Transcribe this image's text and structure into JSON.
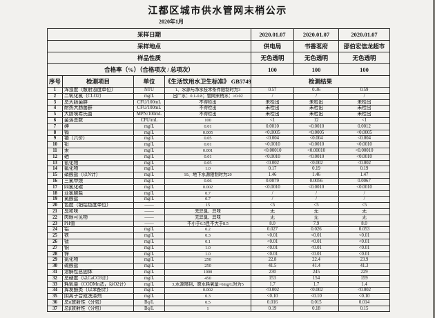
{
  "page": {
    "title": "江都区城市供水管网末梢公示",
    "subtitle": "2020年1月"
  },
  "info_rows": [
    {
      "label": "采样日期",
      "values": [
        "2020.01.07",
        "2020.01.07",
        "2020.01.07"
      ]
    },
    {
      "label": "采样地点",
      "values": [
        "供电局",
        "书香茗府",
        "邵伯宏信龙超市"
      ]
    },
    {
      "label": "样品性质",
      "values": [
        "无色透明",
        "无色透明",
        "无色透明"
      ]
    },
    {
      "label": "合格率（%）（合格项次 / 总项次）",
      "values": [
        "100",
        "100",
        "100"
      ]
    }
  ],
  "table": {
    "headers": {
      "no": "序号",
      "item": "检测项目",
      "unit": "单位",
      "standard": "《生活饮用水卫生标准》 GB5749",
      "results": "检测结果"
    },
    "rows": [
      {
        "no": "1",
        "item": "浑浊度（散射浊度单位）",
        "unit": "NTU",
        "standard": "1、水源与净水技术条件限制时为3",
        "r": [
          "0.57",
          "0.36",
          "0.59"
        ]
      },
      {
        "no": "2",
        "item": "二氧化氯（CLO2）",
        "unit": "mg/L",
        "standard": "出厂水：0.1-0.8；管网末梢水：≥0.02",
        "r": [
          "/",
          "/",
          "/"
        ]
      },
      {
        "no": "3",
        "item": "总大肠菌群",
        "unit": "CFU/100mL",
        "standard": "不得检出",
        "r": [
          "未检出",
          "未检出",
          "未检出"
        ]
      },
      {
        "no": "4",
        "item": "耐热大肠菌群",
        "unit": "CFU/100mL",
        "standard": "不得检出",
        "r": [
          "未检出",
          "未检出",
          "未检出"
        ]
      },
      {
        "no": "5",
        "item": "大肠埃希氏菌",
        "unit": "MPN/100mL",
        "standard": "不得检出",
        "r": [
          "未检出",
          "未检出",
          "未检出"
        ]
      },
      {
        "no": "6",
        "item": "菌落总数",
        "unit": "CFU/mL",
        "standard": "100",
        "r": [
          "<1",
          "12",
          "<1"
        ]
      },
      {
        "no": "7",
        "item": "砷",
        "unit": "mg/L",
        "standard": "0.01",
        "r": [
          "0.0010",
          "<0.0010",
          "0.0012"
        ]
      },
      {
        "no": "8",
        "item": "镉",
        "unit": "mg/L",
        "standard": "0.005",
        "r": [
          "<0.0005",
          "<0.0005",
          "<0.0005"
        ]
      },
      {
        "no": "9",
        "item": "铬（六价）",
        "unit": "mg/L",
        "standard": "0.05",
        "r": [
          "<0.004",
          "<0.004",
          "<0.004"
        ]
      },
      {
        "no": "10",
        "item": "铅",
        "unit": "mg/L",
        "standard": "0.01",
        "r": [
          "<0.0010",
          "<0.0010",
          "<0.0010"
        ]
      },
      {
        "no": "11",
        "item": "汞",
        "unit": "mg/L",
        "standard": "0.001",
        "r": [
          "<0.00010",
          "<0.00010",
          "<0.00010"
        ]
      },
      {
        "no": "12",
        "item": "硒",
        "unit": "mg/L",
        "standard": "0.01",
        "r": [
          "<0.0010",
          "<0.0010",
          "<0.0010"
        ]
      },
      {
        "no": "13",
        "item": "氰化物",
        "unit": "mg/L",
        "standard": "0.05",
        "r": [
          "<0.002",
          "<0.002",
          "<0.002"
        ]
      },
      {
        "no": "14",
        "item": "氟化物",
        "unit": "mg/L",
        "standard": "1.0",
        "r": [
          "0.17",
          "0.19",
          "0.19"
        ]
      },
      {
        "no": "15",
        "item": "硝酸盐（以N计）",
        "unit": "mg/L",
        "standard": "10、地下水源限制时为20",
        "r": [
          "1.46",
          "1.46",
          "1.47"
        ]
      },
      {
        "no": "16",
        "item": "三氯甲烷",
        "unit": "mg/L",
        "standard": "0.06",
        "r": [
          "0.0079",
          "0.0056",
          "0.0067"
        ]
      },
      {
        "no": "17",
        "item": "四氯化碳",
        "unit": "mg/L",
        "standard": "0.002",
        "r": [
          "<0.0010",
          "<0.0010",
          "<0.0010"
        ]
      },
      {
        "no": "18",
        "item": "亚氯酸盐",
        "unit": "mg/L",
        "standard": "0.7",
        "r": [
          "/",
          "/",
          "/"
        ]
      },
      {
        "no": "19",
        "item": "氯酸盐",
        "unit": "mg/L",
        "standard": "0.7",
        "r": [
          "/",
          "/",
          "/"
        ]
      },
      {
        "no": "20",
        "item": "色度（铂钴色度单位）",
        "unit": "——",
        "standard": "15",
        "r": [
          "<5",
          "<5",
          "<5"
        ]
      },
      {
        "no": "21",
        "item": "臭和味",
        "unit": "——",
        "standard": "无异臭、异味",
        "r": [
          "无",
          "无",
          "无"
        ]
      },
      {
        "no": "22",
        "item": "肉眼可见物",
        "unit": "——",
        "standard": "无异臭、异味",
        "r": [
          "无",
          "无",
          "无"
        ]
      },
      {
        "no": "23",
        "item": "PH值",
        "unit": "——",
        "standard": "不小于6.5且不大于8.5",
        "r": [
          "8.0",
          "7.9",
          "8.0"
        ]
      },
      {
        "no": "24",
        "item": "铝",
        "unit": "mg/L",
        "standard": "0.2",
        "r": [
          "0.027",
          "0.026",
          "0.053"
        ]
      },
      {
        "no": "25",
        "item": "铁",
        "unit": "mg/L",
        "standard": "0.3",
        "r": [
          "<0.01",
          "<0.01",
          "<0.01"
        ]
      },
      {
        "no": "26",
        "item": "锰",
        "unit": "mg/L",
        "standard": "0.1",
        "r": [
          "<0.01",
          "<0.01",
          "<0.01"
        ]
      },
      {
        "no": "27",
        "item": "铜",
        "unit": "mg/L",
        "standard": "1.0",
        "r": [
          "<0.01",
          "<0.01",
          "<0.01"
        ]
      },
      {
        "no": "28",
        "item": "锌",
        "unit": "mg/L",
        "standard": "1.0",
        "r": [
          "<0.01",
          "<0.01",
          "<0.01"
        ]
      },
      {
        "no": "29",
        "item": "氯化物",
        "unit": "mg/L",
        "standard": "250",
        "r": [
          "22.8",
          "22.4",
          "23.9"
        ]
      },
      {
        "no": "30",
        "item": "硫酸盐",
        "unit": "mg/L",
        "standard": "250",
        "r": [
          "41.5",
          "41.4",
          "41.3"
        ]
      },
      {
        "no": "31",
        "item": "溶解性总固体",
        "unit": "mg/L",
        "standard": "1000",
        "r": [
          "230",
          "245",
          "229"
        ]
      },
      {
        "no": "32",
        "item": "总硬度（以CaCO3计）",
        "unit": "mg/L",
        "standard": "450",
        "r": [
          "153",
          "154",
          "159"
        ]
      },
      {
        "no": "33",
        "item": "耗氧量（CODMn法，以O2计）",
        "unit": "mg/L",
        "standard": "3,水源限制，原水耗氧量>6mg/L时为5",
        "r": [
          "1.7",
          "1.7",
          "1.4"
        ]
      },
      {
        "no": "34",
        "item": "挥发酚类（以苯酚计）",
        "unit": "mg/L",
        "standard": "0.002",
        "r": [
          "<0.002",
          "<0.002",
          "<0.002"
        ]
      },
      {
        "no": "35",
        "item": "阴离子合成洗涤剂",
        "unit": "mg/L",
        "standard": "0.3",
        "r": [
          "<0.10",
          "<0.10",
          "<0.10"
        ]
      },
      {
        "no": "36",
        "item": "总α放射性（分包）",
        "unit": "Bq/L",
        "standard": "0.5",
        "r": [
          "0.016",
          "0.015",
          "0.014"
        ]
      },
      {
        "no": "37",
        "item": "总β放射性（分包）",
        "unit": "Bq/L",
        "standard": "1",
        "r": [
          "0.19",
          "0.18",
          "0.15"
        ]
      }
    ]
  }
}
